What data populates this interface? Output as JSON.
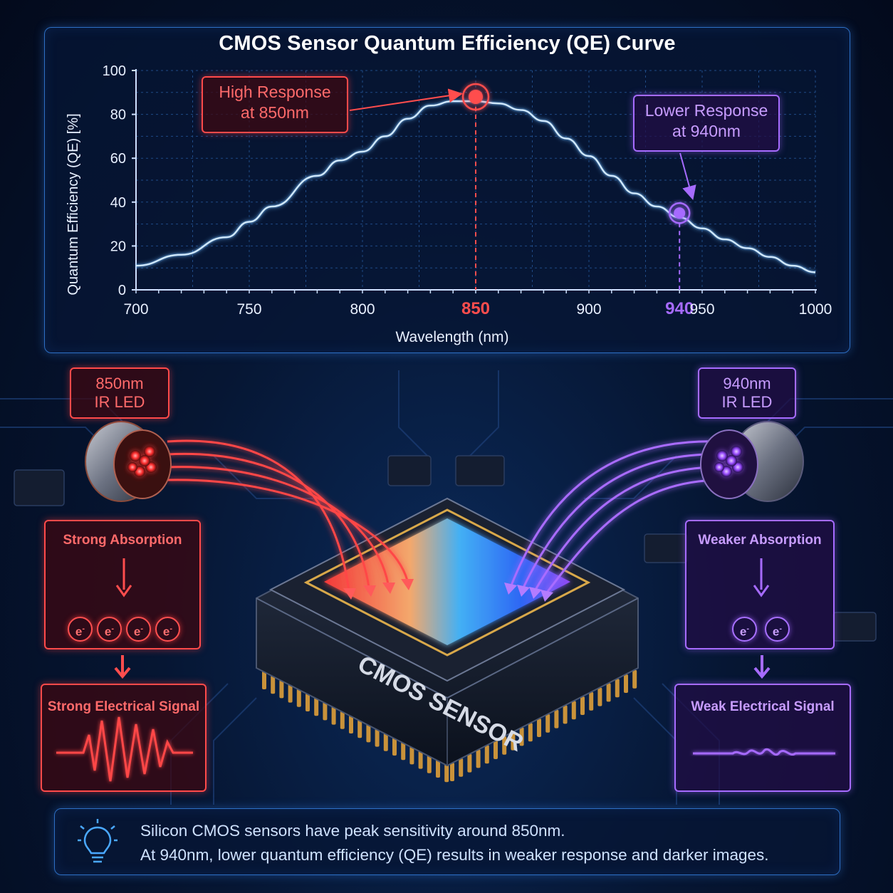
{
  "chart_data": {
    "type": "line",
    "title": "CMOS Sensor Quantum Efficiency (QE) Curve",
    "xlabel": "Wavelength (nm)",
    "ylabel": "Quantum Efficiency (QE) [%]",
    "xlim": [
      700,
      1000
    ],
    "ylim": [
      0,
      100
    ],
    "x_ticks": [
      700,
      750,
      800,
      850,
      900,
      940,
      950,
      1000
    ],
    "y_ticks": [
      0,
      20,
      40,
      60,
      80,
      100
    ],
    "grid": true,
    "series": [
      {
        "name": "QE",
        "x": [
          700,
          720,
          740,
          750,
          760,
          780,
          790,
          800,
          810,
          820,
          830,
          840,
          850,
          860,
          870,
          880,
          890,
          900,
          910,
          920,
          930,
          940,
          950,
          960,
          970,
          980,
          990,
          1000
        ],
        "y": [
          11,
          16,
          24,
          31,
          38,
          52,
          59,
          63,
          70,
          78,
          84,
          86,
          86,
          85,
          82,
          77,
          69,
          61,
          52,
          44,
          38,
          33,
          28,
          23,
          19,
          15,
          11,
          8
        ]
      }
    ],
    "annotations": [
      {
        "x": 850,
        "y": 88,
        "text": "High Response\nat 850nm",
        "color": "#ff4d4d"
      },
      {
        "x": 940,
        "y": 35,
        "text": "Lower Response\nat 940nm",
        "color": "#a66bff"
      }
    ],
    "highlight_ticks": {
      "850": "#ff4d4d",
      "940": "#a66bff"
    }
  },
  "callouts": {
    "high_line1": "High Response",
    "high_line2": "at 850nm",
    "low_line1": "Lower Response",
    "low_line2": "at 940nm"
  },
  "left": {
    "led_line1": "850nm",
    "led_line2": "IR LED",
    "absorption": "Strong Absorption",
    "signal": "Strong Electrical Signal",
    "electron": "e",
    "electron_count": 4
  },
  "right": {
    "led_line1": "940nm",
    "led_line2": "IR LED",
    "absorption": "Weaker Absorption",
    "signal": "Weak Electrical Signal",
    "electron": "e",
    "electron_count": 2
  },
  "sensor": {
    "label": "CMOS SENSOR"
  },
  "footer": {
    "line1": "Silicon CMOS sensors have peak sensitivity around 850nm.",
    "line2": "At 940nm, lower quantum efficiency (QE) results in weaker response and darker images."
  },
  "colors": {
    "accent_red": "#ff4d4d",
    "accent_violet": "#a66bff",
    "curve": "#6ab8ff",
    "panel_border": "#2d6fc4"
  },
  "icons": [
    "lightbulb-icon",
    "ir-led-icon",
    "arrow-down-icon",
    "signal-wave-icon",
    "chip-icon"
  ]
}
